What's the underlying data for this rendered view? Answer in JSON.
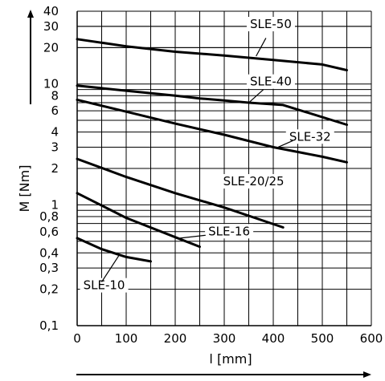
{
  "chart_data": {
    "type": "line",
    "xlabel": "l [mm]",
    "ylabel": "M [Nm]",
    "xlim": [
      0,
      600
    ],
    "ylim": [
      0.1,
      40
    ],
    "yscale": "log",
    "grid": true,
    "legend": "none",
    "x_ticks": [
      0,
      100,
      200,
      300,
      400,
      500,
      600
    ],
    "x_tick_labels": [
      "0",
      "100",
      "200",
      "300",
      "400",
      "500",
      "600"
    ],
    "y_ticks": [
      0.1,
      0.2,
      0.3,
      0.4,
      0.6,
      0.8,
      1,
      2,
      3,
      4,
      6,
      8,
      10,
      20,
      30,
      40
    ],
    "y_tick_labels": [
      "0,1",
      "0,2",
      "0,3",
      "0,4",
      "0,6",
      "0,8",
      "1",
      "2",
      "3",
      "4",
      "6",
      "8",
      "10",
      "20",
      "30",
      "40"
    ],
    "series": [
      {
        "name": "SLE-50",
        "x": [
          0,
          100,
          200,
          300,
          400,
          500,
          550
        ],
        "y": [
          23.5,
          20.5,
          18.5,
          17.2,
          15.8,
          14.5,
          13
        ]
      },
      {
        "name": "SLE-40",
        "x": [
          0,
          100,
          200,
          250,
          300,
          350,
          420,
          550
        ],
        "y": [
          9.7,
          8.8,
          8.0,
          7.6,
          7.3,
          7.0,
          6.7,
          4.6
        ]
      },
      {
        "name": "SLE-32",
        "x": [
          0,
          100,
          200,
          300,
          400,
          500,
          550
        ],
        "y": [
          7.4,
          5.9,
          4.7,
          3.8,
          3.0,
          2.5,
          2.25
        ]
      },
      {
        "name": "SLE-20/25",
        "x": [
          0,
          100,
          200,
          300,
          420
        ],
        "y": [
          2.4,
          1.7,
          1.25,
          0.95,
          0.65
        ]
      },
      {
        "name": "SLE-16",
        "x": [
          0,
          100,
          200,
          250
        ],
        "y": [
          1.25,
          0.78,
          0.54,
          0.45
        ]
      },
      {
        "name": "SLE-10",
        "x": [
          0,
          50,
          100,
          150
        ],
        "y": [
          0.53,
          0.43,
          0.37,
          0.34
        ]
      }
    ]
  }
}
